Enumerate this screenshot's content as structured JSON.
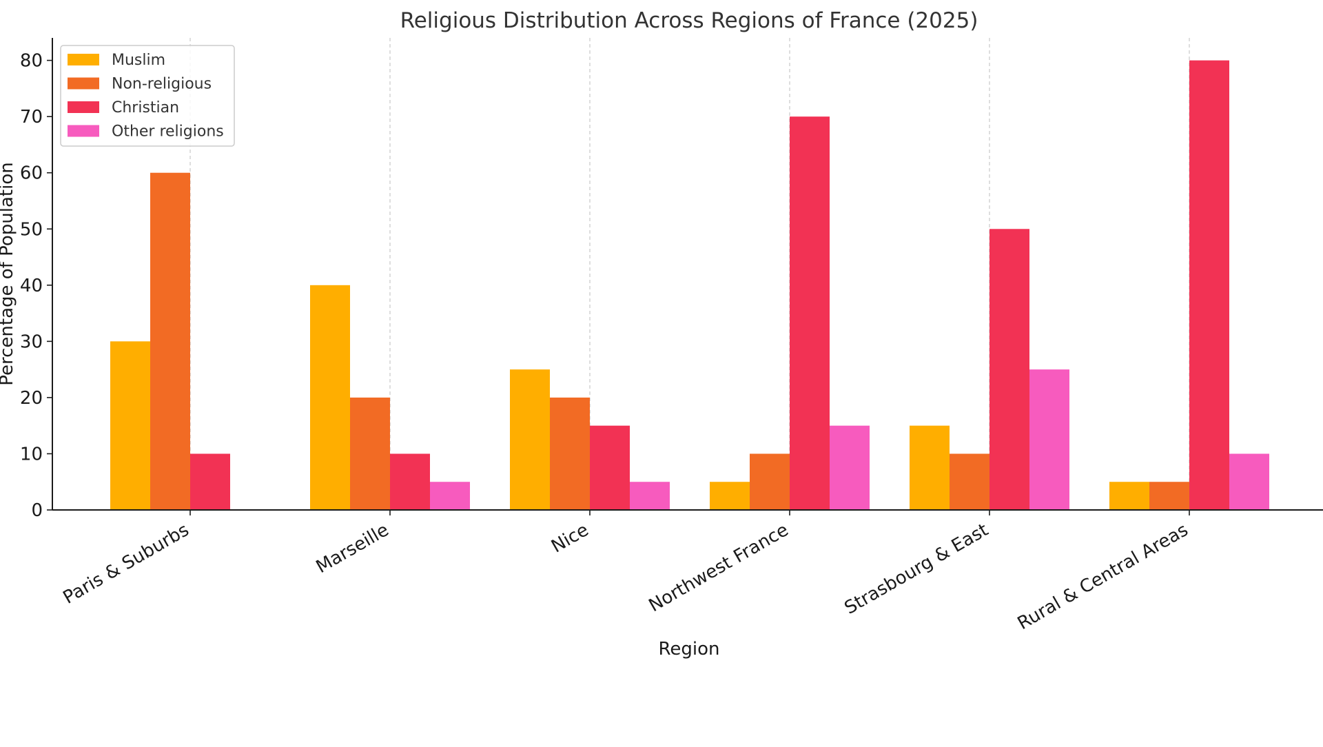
{
  "chart_data": {
    "type": "bar",
    "title": "Religious Distribution Across Regions of France (2025)",
    "xlabel": "Region",
    "ylabel": "Percentage of Population",
    "ylim": [
      0,
      84
    ],
    "yticks": [
      0,
      10,
      20,
      30,
      40,
      50,
      60,
      70,
      80
    ],
    "grid": "vertical dashed gridlines at category centers",
    "legend_position": "top-left",
    "categories": [
      "Paris & Suburbs",
      "Marseille",
      "Nice",
      "Northwest France",
      "Strasbourg & East",
      "Rural & Central Areas"
    ],
    "series": [
      {
        "name": "Muslim",
        "color": "#FFAE00",
        "values": [
          30,
          40,
          25,
          5,
          15,
          5
        ]
      },
      {
        "name": "Non-religious",
        "color": "#F26B24",
        "values": [
          60,
          20,
          20,
          10,
          10,
          5
        ]
      },
      {
        "name": "Christian",
        "color": "#F23254",
        "values": [
          10,
          10,
          15,
          70,
          50,
          80
        ]
      },
      {
        "name": "Other religions",
        "color": "#F75BBE",
        "values": [
          0,
          5,
          5,
          15,
          25,
          10
        ]
      }
    ]
  }
}
